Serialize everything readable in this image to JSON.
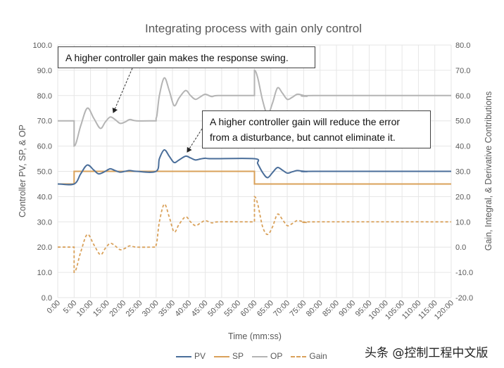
{
  "chart_data": {
    "type": "line",
    "title": "Integrating process with gain only control",
    "xlabel": "Time (mm:ss)",
    "ylabel_left": "Controller PV, SP, & OP",
    "ylabel_right": "Gain, Integral, & Derivative Contributions",
    "xlim": [
      0,
      120
    ],
    "ylim_left": [
      0,
      100
    ],
    "ylim_right": [
      -20,
      80
    ],
    "grid": true,
    "legend_position": "bottom",
    "x_ticks": [
      "0:00",
      "5:00",
      "10:00",
      "15:00",
      "20:00",
      "25:00",
      "30:00",
      "35:00",
      "40:00",
      "45:00",
      "50:00",
      "55:00",
      "60:00",
      "65:00",
      "70:00",
      "75:00",
      "80:00",
      "85:00",
      "90:00",
      "95:00",
      "100:00",
      "105:00",
      "110:00",
      "115:00",
      "120:00"
    ],
    "y_ticks_left": [
      "0.0",
      "10.0",
      "20.0",
      "30.0",
      "40.0",
      "50.0",
      "60.0",
      "70.0",
      "80.0",
      "90.0",
      "100.0"
    ],
    "y_ticks_right": [
      "-20.0",
      "-10.0",
      "0.0",
      "10.0",
      "20.0",
      "30.0",
      "40.0",
      "50.0",
      "60.0",
      "70.0",
      "80.0"
    ],
    "series": [
      {
        "name": "PV",
        "axis": "left",
        "color": "#4a6e9a",
        "dash": false,
        "x": [
          0,
          5,
          7,
          9,
          11,
          12.5,
          14.5,
          16,
          17.5,
          19,
          20.5,
          22,
          24,
          30,
          31,
          32.5,
          34,
          35.5,
          37,
          39,
          40.5,
          42,
          43.5,
          45,
          47,
          60,
          61,
          62.5,
          64,
          65.5,
          67,
          68.5,
          70,
          71.5,
          73,
          74.5,
          76,
          78,
          120
        ],
        "y": [
          45,
          45,
          49,
          52.5,
          50.5,
          49,
          50,
          51,
          50.3,
          49.7,
          50,
          50.3,
          50,
          50,
          55,
          58.5,
          56,
          53.5,
          54.5,
          56,
          55.3,
          54.5,
          54.9,
          55.2,
          55,
          55,
          53,
          49.5,
          47.5,
          49.5,
          51.5,
          50.5,
          49.3,
          49.8,
          50.3,
          50.1,
          49.9,
          50,
          50
        ]
      },
      {
        "name": "SP",
        "axis": "left",
        "color": "#d9a15a",
        "dash": false,
        "step": true,
        "x": [
          0,
          5,
          5,
          60,
          60,
          120
        ],
        "y": [
          45,
          45,
          50,
          50,
          45,
          45
        ]
      },
      {
        "name": "OP",
        "axis": "left",
        "color": "#b4b4b4",
        "dash": false,
        "x": [
          0,
          5,
          5,
          7,
          9,
          11,
          13,
          14.5,
          16,
          17.5,
          19,
          20.5,
          22,
          24,
          30,
          30,
          31,
          32.5,
          34,
          35.5,
          37,
          39,
          40.5,
          42,
          43.5,
          45,
          47,
          49,
          60,
          60,
          61,
          62.5,
          64,
          65.5,
          67,
          68.5,
          70,
          71.5,
          73,
          74.5,
          76,
          78,
          120
        ],
        "y": [
          70,
          70,
          60,
          68,
          75,
          71,
          67,
          69.5,
          71.5,
          70.5,
          69,
          69.5,
          70.5,
          70,
          70,
          71,
          80,
          87,
          82,
          76,
          79,
          82,
          80,
          78.5,
          79.5,
          80.5,
          79.6,
          80,
          80,
          90,
          87,
          78,
          72.5,
          77,
          83,
          81,
          78.5,
          79.3,
          80.5,
          80.2,
          79.7,
          80,
          80
        ]
      },
      {
        "name": "Gain",
        "axis": "right",
        "color": "#d9a15a",
        "dash": true,
        "x": [
          0,
          5,
          5,
          7,
          9,
          11,
          13,
          14.5,
          16,
          17.5,
          19,
          20.5,
          22,
          24,
          30,
          30,
          31,
          32.5,
          34,
          35.5,
          37,
          39,
          40.5,
          42,
          43.5,
          45,
          47,
          49,
          60,
          60,
          61,
          62.5,
          64,
          65.5,
          67,
          68.5,
          70,
          71.5,
          73,
          74.5,
          76,
          78,
          120
        ],
        "y": [
          0,
          0,
          -10,
          -2,
          5,
          1,
          -3,
          -0.5,
          1.5,
          0.5,
          -1,
          -0.5,
          0.5,
          0,
          0,
          1,
          10,
          17,
          12,
          6,
          9,
          12,
          10,
          8.5,
          9.5,
          10.5,
          9.6,
          10,
          10,
          20,
          17,
          8,
          5,
          8,
          13,
          11,
          8.5,
          9.3,
          10.5,
          10.2,
          9.7,
          10,
          10
        ]
      }
    ],
    "annotations": [
      "A higher controller gain makes the response swing.",
      [
        "A higher controller gain will reduce the error",
        "from a disturbance, but cannot eliminate it."
      ]
    ]
  },
  "watermark": "头条 @控制工程中文版"
}
